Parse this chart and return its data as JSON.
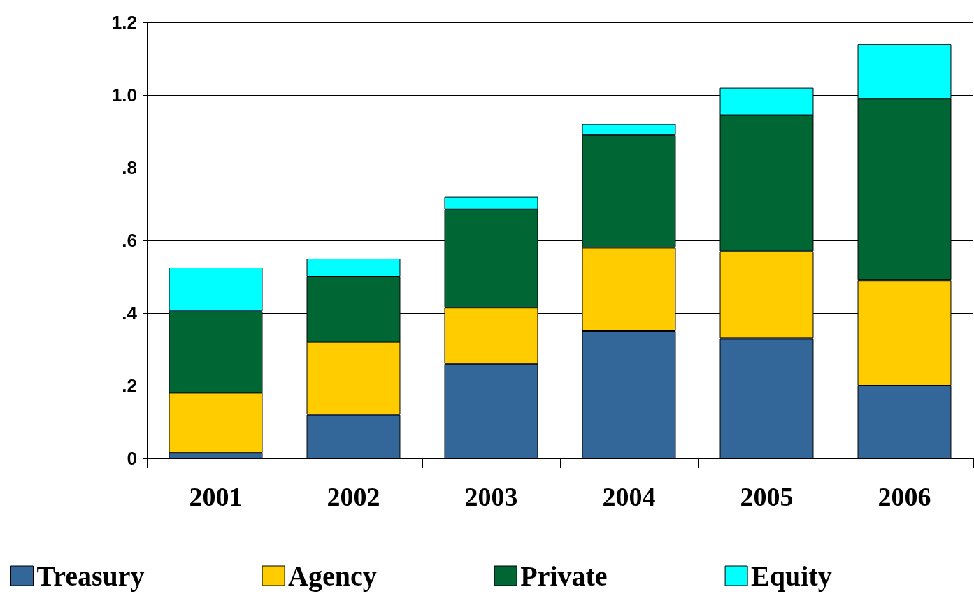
{
  "chart_data": {
    "type": "bar",
    "stacked": true,
    "categories": [
      "2001",
      "2002",
      "2003",
      "2004",
      "2005",
      "2006"
    ],
    "series": [
      {
        "name": "Treasury",
        "color": "#336699",
        "values": [
          0.015,
          0.12,
          0.26,
          0.35,
          0.33,
          0.2
        ]
      },
      {
        "name": "Agency",
        "color": "#ffcc00",
        "values": [
          0.165,
          0.2,
          0.155,
          0.23,
          0.24,
          0.29
        ]
      },
      {
        "name": "Private",
        "color": "#006633",
        "values": [
          0.225,
          0.18,
          0.27,
          0.31,
          0.375,
          0.5
        ]
      },
      {
        "name": "Equity",
        "color": "#00ffff",
        "values": [
          0.12,
          0.05,
          0.035,
          0.03,
          0.075,
          0.15
        ]
      }
    ],
    "ylim": [
      0,
      1.2
    ],
    "yticks": [
      {
        "value": 0,
        "label": "0"
      },
      {
        "value": 0.2,
        "label": ".2"
      },
      {
        "value": 0.4,
        "label": ".4"
      },
      {
        "value": 0.6,
        "label": ".6"
      },
      {
        "value": 0.8,
        "label": ".8"
      },
      {
        "value": 1,
        "label": "1.0"
      },
      {
        "value": 1.2,
        "label": "1.2"
      }
    ],
    "grid": "y",
    "legend": "bottom"
  }
}
